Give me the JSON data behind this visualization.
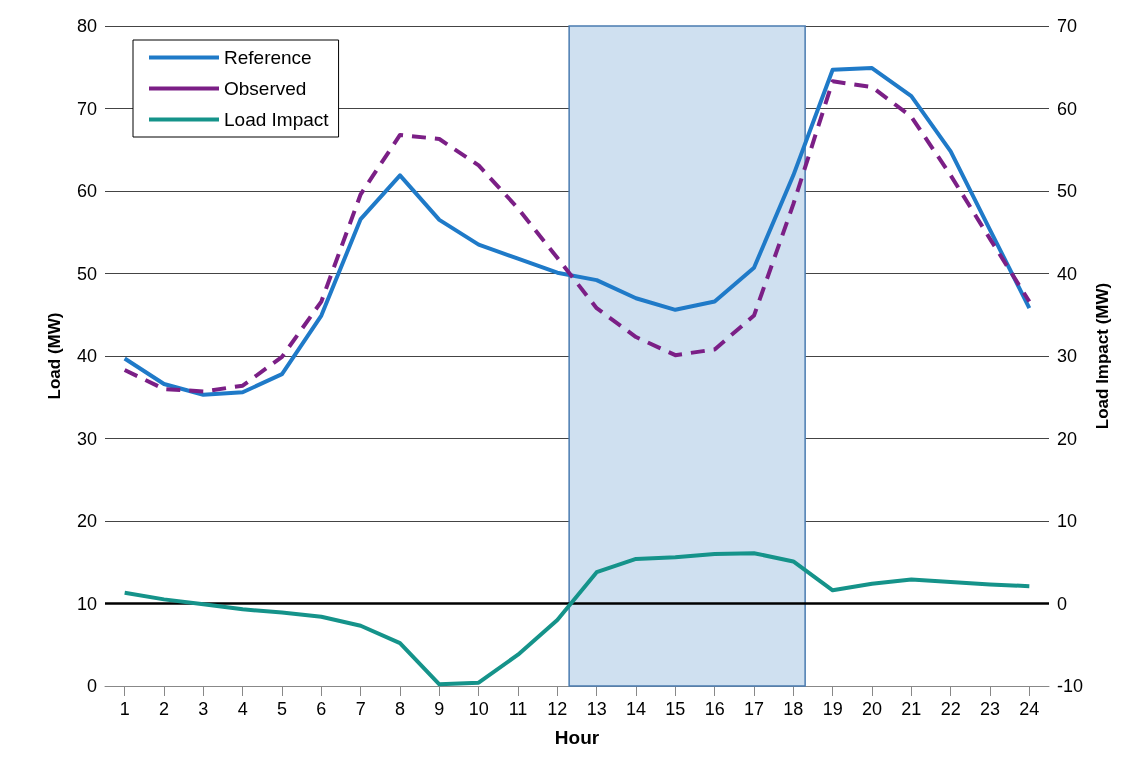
{
  "chart_data": {
    "type": "line",
    "xlabel": "Hour",
    "ylabel": "Load (MW)",
    "y2label": "Load Impact (MW)",
    "x": [
      1,
      2,
      3,
      4,
      5,
      6,
      7,
      8,
      9,
      10,
      11,
      12,
      13,
      14,
      15,
      16,
      17,
      18,
      19,
      20,
      21,
      22,
      23,
      24
    ],
    "xlim": [
      0.5,
      24.5
    ],
    "xticks": [
      1,
      2,
      3,
      4,
      5,
      6,
      7,
      8,
      9,
      10,
      11,
      12,
      13,
      14,
      15,
      16,
      17,
      18,
      19,
      20,
      21,
      22,
      23,
      24
    ],
    "ylim": [
      0,
      80
    ],
    "yticks": [
      0,
      10,
      20,
      30,
      40,
      50,
      60,
      70,
      80
    ],
    "y2lim": [
      -10,
      70
    ],
    "y2ticks": [
      -10,
      0,
      10,
      20,
      30,
      40,
      50,
      60,
      70
    ],
    "series": [
      {
        "name": "Reference",
        "color": "#1f7ac8",
        "line_style": "solid",
        "values": [
          39.7,
          36.6,
          35.3,
          35.6,
          37.8,
          44.9,
          56.6,
          61.9,
          56.5,
          53.5,
          51.8,
          50.1,
          49.2,
          47.0,
          45.6,
          46.6,
          50.7,
          61.9,
          74.7,
          74.9,
          71.5,
          64.8,
          55.3,
          45.8
        ]
      },
      {
        "name": "Observed",
        "color": "#7b1f86",
        "line_style": "dashed",
        "values": [
          38.3,
          36.0,
          35.7,
          36.4,
          39.9,
          46.6,
          59.6,
          66.8,
          66.3,
          63.1,
          57.9,
          51.9,
          45.8,
          42.3,
          40.1,
          40.8,
          44.9,
          58.4,
          73.3,
          72.6,
          69.0,
          61.9,
          54.2,
          46.6
        ]
      },
      {
        "name": "Load Impact",
        "color": "#15938a",
        "line_style": "solid",
        "axis": "y2",
        "values": [
          1.3,
          0.5,
          -0.1,
          -0.7,
          -1.1,
          -1.6,
          -2.7,
          -4.8,
          -9.8,
          -9.6,
          -6.2,
          -2.0,
          3.8,
          5.4,
          5.6,
          6.0,
          6.1,
          5.1,
          1.6,
          2.4,
          2.9,
          2.6,
          2.3,
          2.1
        ]
      }
    ],
    "ref_lines": [
      {
        "axis": "y2",
        "value": 0,
        "color": "#000000"
      }
    ],
    "bands": [
      {
        "axis": "x",
        "from": 12.3,
        "to": 18.3,
        "color": "#cfe0f0"
      }
    ],
    "grid": "y",
    "legend": "top left",
    "marker": "none"
  }
}
